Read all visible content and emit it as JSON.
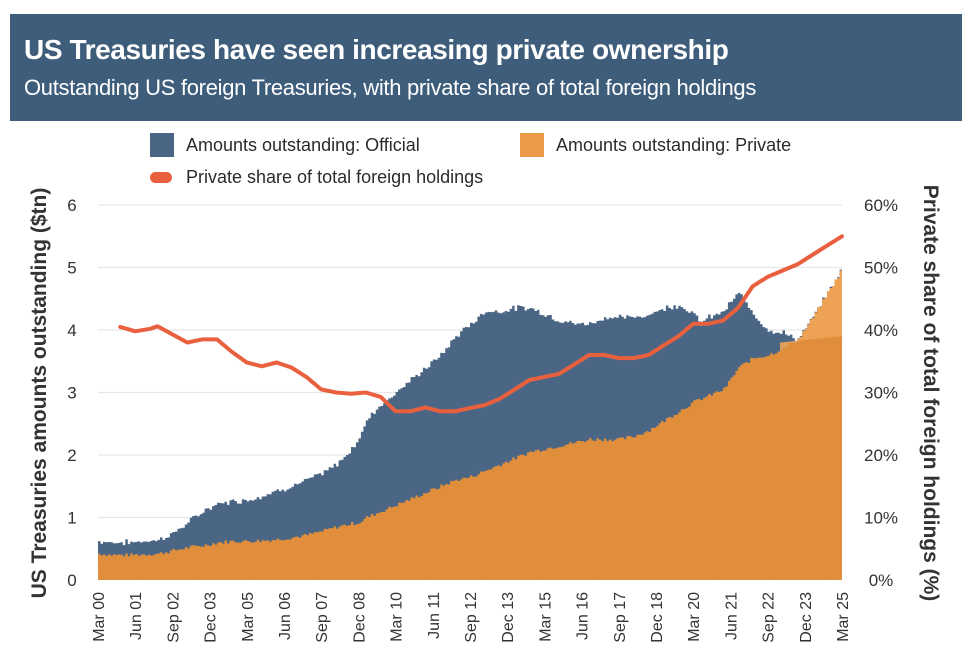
{
  "header": {
    "title": "US Treasuries have seen increasing private ownership",
    "subtitle": "Outstanding US foreign Treasuries, with private share of total foreign holdings"
  },
  "colors": {
    "header_bg": "#3e5d7a",
    "official": "#4a6684",
    "private": "#e08d3c",
    "private_light": "#f0a556",
    "share_line": "#e8603e",
    "grid": "#e6e6e6"
  },
  "legend": {
    "official": "Amounts outstanding: Official",
    "private": "Amounts outstanding: Private",
    "share": "Private share of total foreign holdings"
  },
  "chart_data": {
    "type": "area",
    "title": "US Treasuries have seen increasing private ownership",
    "subtitle": "Outstanding US foreign Treasuries, with private share of total foreign holdings",
    "xlabel": "",
    "ylabel": "US Treasuries amounts outstanding ($tn)",
    "ylabel_right": "Private share of total foreign holdings (%)",
    "ylim": [
      0,
      6
    ],
    "ylim_right": [
      0,
      60
    ],
    "yticks": [
      "0",
      "1",
      "2",
      "3",
      "4",
      "5",
      "6"
    ],
    "yticks_right": [
      "0%",
      "10%",
      "20%",
      "30%",
      "40%",
      "50%",
      "60%"
    ],
    "xticks": [
      "Mar 00",
      "Jun 01",
      "Sep 02",
      "Dec 03",
      "Mar 05",
      "Jun 06",
      "Sep 07",
      "Dec 08",
      "Mar 10",
      "Jun 11",
      "Sep 12",
      "Dec 13",
      "Mar 15",
      "Jun 16",
      "Sep 17",
      "Dec 18",
      "Mar 20",
      "Jun 21",
      "Sep 22",
      "Dec 23",
      "Mar 25"
    ],
    "x_years": [
      2000.0,
      2000.5,
      2001.0,
      2001.5,
      2002.0,
      2002.5,
      2003.0,
      2003.5,
      2004.0,
      2004.5,
      2005.0,
      2005.5,
      2006.0,
      2006.5,
      2007.0,
      2007.5,
      2008.0,
      2008.5,
      2008.75,
      2009.0,
      2009.25,
      2009.5,
      2009.75,
      2010.0,
      2010.5,
      2011.0,
      2011.5,
      2012.0,
      2012.5,
      2013.0,
      2013.5,
      2014.0,
      2014.5,
      2015.0,
      2015.5,
      2016.0,
      2016.5,
      2017.0,
      2017.5,
      2018.0,
      2018.5,
      2019.0,
      2019.5,
      2020.0,
      2020.25,
      2020.5,
      2021.0,
      2021.5,
      2022.0,
      2022.5,
      2023.0,
      2023.5,
      2024.0,
      2024.5,
      2024.9,
      2025.0
    ],
    "series": [
      {
        "name": "Amounts outstanding: Official",
        "note": "values are official holdings ($tn), stacked above private",
        "values": [
          0.2,
          0.2,
          0.2,
          0.21,
          0.22,
          0.28,
          0.4,
          0.55,
          0.62,
          0.64,
          0.66,
          0.72,
          0.78,
          0.82,
          0.88,
          0.92,
          1.0,
          1.2,
          1.35,
          1.55,
          1.65,
          1.72,
          1.75,
          1.82,
          1.9,
          2.0,
          2.1,
          2.3,
          2.45,
          2.55,
          2.45,
          2.4,
          2.3,
          2.15,
          2.0,
          1.9,
          1.85,
          1.95,
          1.95,
          1.9,
          1.85,
          1.8,
          1.7,
          1.4,
          1.2,
          1.25,
          1.25,
          1.2,
          0.7,
          0.4,
          0.25,
          0.0,
          0.0,
          0.0,
          0.0,
          0.0
        ]
      },
      {
        "name": "Amounts outstanding: Private",
        "values": [
          0.42,
          0.4,
          0.4,
          0.41,
          0.42,
          0.47,
          0.52,
          0.55,
          0.6,
          0.62,
          0.62,
          0.63,
          0.65,
          0.68,
          0.72,
          0.78,
          0.85,
          0.9,
          0.92,
          1.0,
          1.05,
          1.1,
          1.15,
          1.2,
          1.3,
          1.4,
          1.5,
          1.6,
          1.65,
          1.75,
          1.85,
          1.95,
          2.05,
          2.1,
          2.15,
          2.2,
          2.25,
          2.25,
          2.25,
          2.3,
          2.4,
          2.55,
          2.7,
          2.85,
          2.9,
          2.95,
          3.05,
          3.4,
          3.55,
          3.6,
          3.7,
          3.85,
          4.2,
          4.6,
          4.9,
          5.1
        ]
      },
      {
        "name": "Private share of total foreign holdings",
        "unit": "%",
        "x_years": [
          2000.75,
          2001.25,
          2001.75,
          2002.0,
          2002.5,
          2003.0,
          2003.5,
          2004.0,
          2004.5,
          2005.0,
          2005.5,
          2006.0,
          2006.5,
          2007.0,
          2007.5,
          2008.0,
          2008.5,
          2009.0,
          2009.5,
          2010.0,
          2010.5,
          2011.0,
          2011.5,
          2012.0,
          2012.5,
          2013.0,
          2013.5,
          2014.0,
          2014.5,
          2015.0,
          2015.5,
          2016.0,
          2016.5,
          2017.0,
          2017.5,
          2018.0,
          2018.5,
          2019.0,
          2019.5,
          2020.0,
          2020.5,
          2021.0,
          2021.5,
          2022.0,
          2022.5,
          2023.0,
          2023.5,
          2024.0,
          2024.5,
          2025.0
        ],
        "values": [
          40.5,
          39.8,
          40.2,
          40.6,
          39.3,
          38.0,
          38.5,
          38.5,
          36.5,
          34.8,
          34.2,
          34.8,
          34.0,
          32.5,
          30.5,
          30.0,
          29.8,
          30.0,
          29.3,
          27.0,
          27.0,
          27.6,
          27.0,
          27.0,
          27.5,
          28.0,
          29.0,
          30.5,
          32.0,
          32.5,
          33.0,
          34.5,
          36.0,
          36.0,
          35.5,
          35.5,
          36.0,
          37.5,
          39.0,
          41.0,
          41.0,
          41.5,
          43.5,
          47.0,
          48.5,
          49.5,
          50.5,
          52.0,
          53.5,
          55.0
        ]
      }
    ],
    "grid": true,
    "legend_position": "top"
  }
}
